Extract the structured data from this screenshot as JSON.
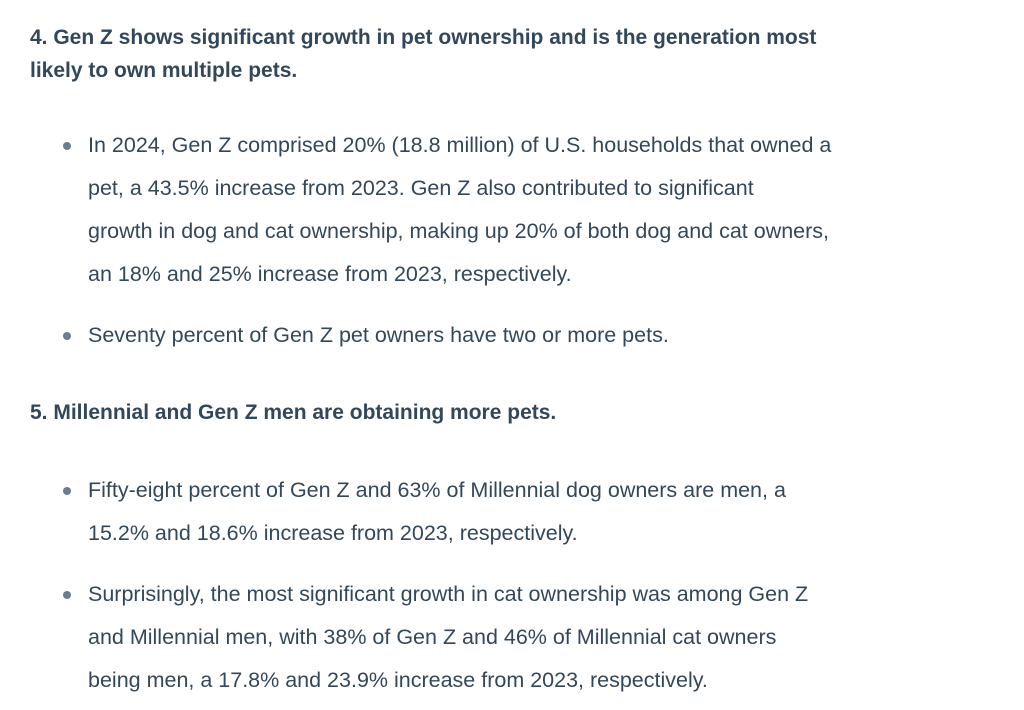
{
  "sections": [
    {
      "heading": [
        "4. Gen Z shows significant growth in pet ownership and is the generation most",
        "likely to own multiple pets."
      ],
      "bullets": [
        [
          "In 2024, Gen Z comprised 20% (18.8 million) of U.S. households that owned a",
          "pet, a 43.5% increase from 2023. Gen Z also contributed to significant",
          "growth in dog and cat ownership, making up 20% of both dog and cat owners,",
          "an 18% and 25% increase from 2023, respectively."
        ],
        [
          "Seventy percent of Gen Z pet owners have two or more pets."
        ]
      ]
    },
    {
      "heading": [
        "5. Millennial and Gen Z men are obtaining more pets."
      ],
      "bullets": [
        [
          "Fifty-eight percent of Gen Z and 63% of Millennial dog owners are men, a",
          "15.2% and 18.6% increase from 2023, respectively."
        ],
        [
          "Surprisingly, the most significant growth in cat ownership was among Gen Z",
          "and Millennial men, with 38% of Gen Z and 46% of Millennial cat owners",
          "being men, a 17.8% and 23.9% increase from 2023, respectively."
        ]
      ]
    }
  ]
}
